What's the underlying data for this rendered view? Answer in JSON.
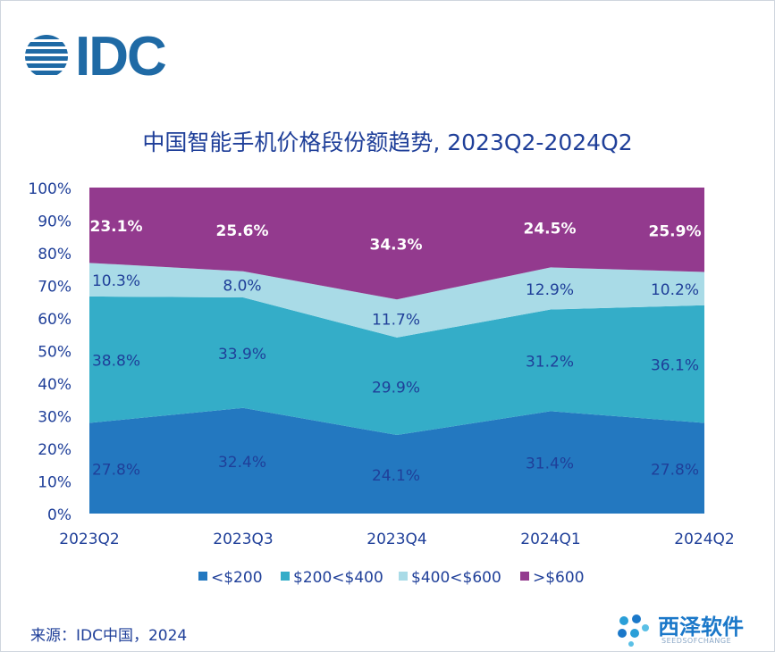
{
  "brand": {
    "logo_text": "IDC"
  },
  "source": "来源：IDC中国，2024",
  "watermark": {
    "title": "西泽软件",
    "subtitle": "SEEDSOFCHANGE"
  },
  "colors": {
    "lt200": "#2378c0",
    "200to400": "#34adc8",
    "400to600": "#a9dbe7",
    "gt600": "#933a8e",
    "text_dark": "#1f3f99"
  },
  "chart_data": {
    "type": "area",
    "stacked": true,
    "title": "中国智能手机价格段份额趋势, 2023Q2-2024Q2",
    "categories": [
      "2023Q2",
      "2023Q3",
      "2023Q4",
      "2024Q1",
      "2024Q2"
    ],
    "y_ticks": [
      "0%",
      "10%",
      "20%",
      "30%",
      "40%",
      "50%",
      "60%",
      "70%",
      "80%",
      "90%",
      "100%"
    ],
    "ylim": [
      0,
      100
    ],
    "legend_position": "bottom",
    "series": [
      {
        "name": "<$200",
        "color": "#2378c0",
        "values": [
          27.8,
          32.4,
          24.1,
          31.4,
          27.8
        ],
        "labels": [
          "27.8%",
          "32.4%",
          "24.1%",
          "31.4%",
          "27.8%"
        ]
      },
      {
        "name": "$200<$400",
        "color": "#34adc8",
        "values": [
          38.8,
          33.9,
          29.9,
          31.2,
          36.1
        ],
        "labels": [
          "38.8%",
          "33.9%",
          "29.9%",
          "31.2%",
          "36.1%"
        ]
      },
      {
        "name": "$400<$600",
        "color": "#a9dbe7",
        "values": [
          10.3,
          8.0,
          11.7,
          12.9,
          10.2
        ],
        "labels": [
          "10.3%",
          "8.0%",
          "11.7%",
          "12.9%",
          "10.2%"
        ]
      },
      {
        "name": ">$600",
        "color": "#933a8e",
        "values": [
          23.1,
          25.6,
          34.3,
          24.5,
          25.9
        ],
        "labels": [
          "23.1%",
          "25.6%",
          "34.3%",
          "24.5%",
          "25.9%"
        ]
      }
    ]
  }
}
